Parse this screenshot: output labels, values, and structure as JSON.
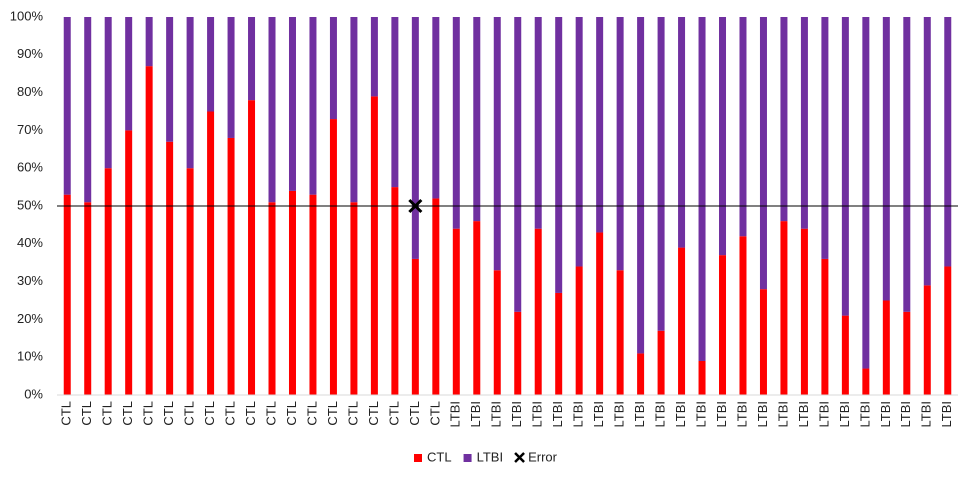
{
  "chart_data": {
    "type": "bar",
    "stacked": true,
    "categories": [
      "CTL",
      "CTL",
      "CTL",
      "CTL",
      "CTL",
      "CTL",
      "CTL",
      "CTL",
      "CTL",
      "CTL",
      "CTL",
      "CTL",
      "CTL",
      "CTL",
      "CTL",
      "CTL",
      "CTL",
      "CTL",
      "CTL",
      "LTBI",
      "LTBI",
      "LTBI",
      "LTBI",
      "LTBI",
      "LTBI",
      "LTBI",
      "LTBI",
      "LTBI",
      "LTBI",
      "LTBI",
      "LTBI",
      "LTBI",
      "LTBI",
      "LTBI",
      "LTBI",
      "LTBI",
      "LTBI",
      "LTBI",
      "LTBI",
      "LTBI",
      "LTBI",
      "LTBI",
      "LTBI",
      "LTBI"
    ],
    "series": [
      {
        "name": "CTL",
        "color": "#ff0000",
        "values": [
          53,
          51,
          60,
          70,
          87,
          67,
          60,
          75,
          68,
          78,
          51,
          54,
          53,
          73,
          51,
          79,
          55,
          36,
          52,
          44,
          46,
          33,
          22,
          44,
          27,
          34,
          43,
          33,
          11,
          17,
          39,
          9,
          37,
          42,
          28,
          46,
          44,
          36,
          21,
          7,
          25,
          22,
          29,
          34
        ]
      },
      {
        "name": "LTBI",
        "color": "#7030a0",
        "values": [
          47,
          49,
          40,
          30,
          13,
          33,
          40,
          25,
          32,
          22,
          49,
          46,
          47,
          27,
          49,
          21,
          45,
          64,
          48,
          56,
          54,
          67,
          78,
          56,
          73,
          66,
          57,
          67,
          89,
          83,
          61,
          91,
          63,
          58,
          72,
          54,
          56,
          64,
          79,
          93,
          75,
          78,
          71,
          66
        ]
      },
      {
        "name": "Error",
        "type": "scatter",
        "color": "#000000",
        "values": [
          null,
          null,
          null,
          null,
          null,
          null,
          null,
          null,
          null,
          null,
          null,
          null,
          null,
          null,
          null,
          null,
          null,
          50,
          null,
          null,
          null,
          null,
          null,
          null,
          null,
          null,
          null,
          null,
          null,
          null,
          null,
          null,
          null,
          null,
          null,
          null,
          null,
          null,
          null,
          null,
          null,
          null,
          null,
          null
        ]
      }
    ],
    "hline": 50,
    "ylim": [
      0,
      100
    ],
    "yticks": [
      {
        "value": 0,
        "label": "0%"
      },
      {
        "value": 10,
        "label": "10%"
      },
      {
        "value": 20,
        "label": "20%"
      },
      {
        "value": 30,
        "label": "30%"
      },
      {
        "value": 40,
        "label": "40%"
      },
      {
        "value": 50,
        "label": "50%"
      },
      {
        "value": 60,
        "label": "60%"
      },
      {
        "value": 70,
        "label": "70%"
      },
      {
        "value": 80,
        "label": "80%"
      },
      {
        "value": 90,
        "label": "90%"
      },
      {
        "value": 100,
        "label": "100%"
      }
    ],
    "legend": "bottom"
  }
}
